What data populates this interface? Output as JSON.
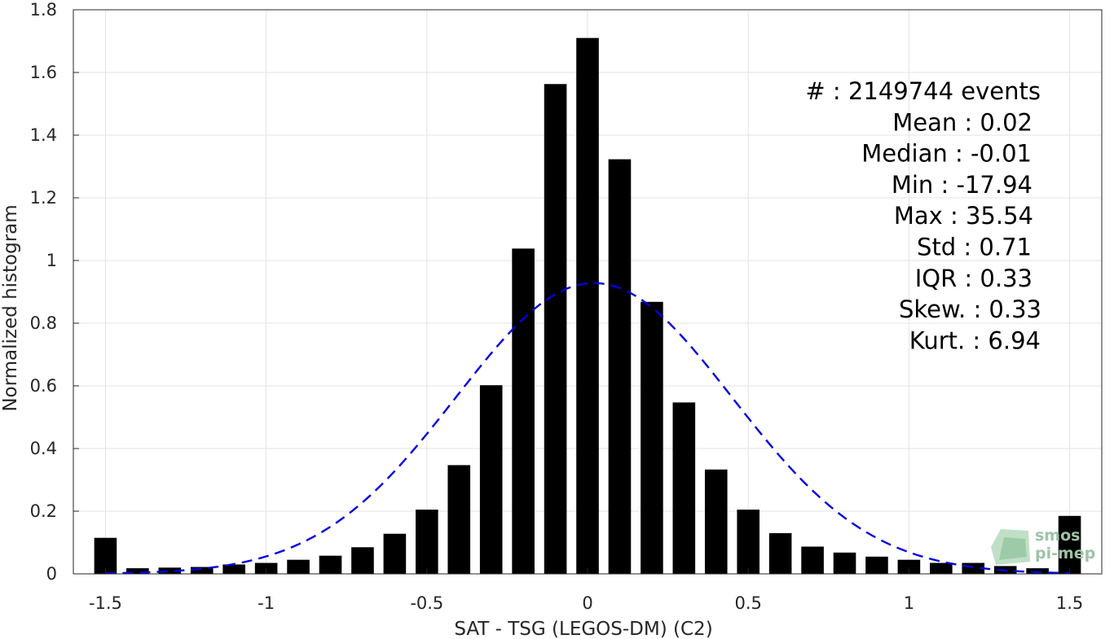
{
  "chart_data": {
    "type": "bar",
    "xlabel": "SAT - TSG (LEGOS-DM) (C2)",
    "ylabel": "Normalized histogram",
    "xlim": [
      -1.6,
      1.6
    ],
    "ylim": [
      0,
      1.8
    ],
    "xticks": [
      "-1.5",
      "-1",
      "-0.5",
      "0",
      "0.5",
      "1",
      "1.5"
    ],
    "yticks": [
      "0",
      "0.2",
      "0.4",
      "0.6",
      "0.8",
      "1",
      "1.2",
      "1.4",
      "1.6",
      "1.8"
    ],
    "grid": true,
    "bar_color": "#000000",
    "x": [
      -1.5,
      -1.4,
      -1.3,
      -1.2,
      -1.1,
      -1.0,
      -0.9,
      -0.8,
      -0.7,
      -0.6,
      -0.5,
      -0.4,
      -0.3,
      -0.2,
      -0.1,
      0.0,
      0.1,
      0.2,
      0.3,
      0.4,
      0.5,
      0.6,
      0.7,
      0.8,
      0.9,
      1.0,
      1.1,
      1.2,
      1.3,
      1.4,
      1.5
    ],
    "values": [
      0.115,
      0.018,
      0.02,
      0.022,
      0.03,
      0.035,
      0.045,
      0.058,
      0.085,
      0.128,
      0.205,
      0.347,
      0.602,
      1.038,
      1.563,
      1.71,
      1.323,
      0.868,
      0.547,
      0.333,
      0.205,
      0.13,
      0.087,
      0.068,
      0.055,
      0.045,
      0.035,
      0.035,
      0.025,
      0.018,
      0.185
    ],
    "fit": {
      "style": "dashed",
      "color": "#0000e0",
      "mean": 0.02,
      "std": 0.43,
      "peak": 0.928,
      "xrange": [
        -1.5,
        1.5
      ]
    }
  },
  "stats": [
    "#  : 2149744 events",
    "Mean : 0.02",
    "Median : -0.01",
    "Min : -17.94",
    "Max : 35.54",
    "Std : 0.71",
    "IQR : 0.33",
    "Skew. : 0.33",
    "Kurt. : 6.94"
  ],
  "logo": {
    "line1": "smos",
    "line2": "pi-mep",
    "color": "#9dc4a6"
  }
}
